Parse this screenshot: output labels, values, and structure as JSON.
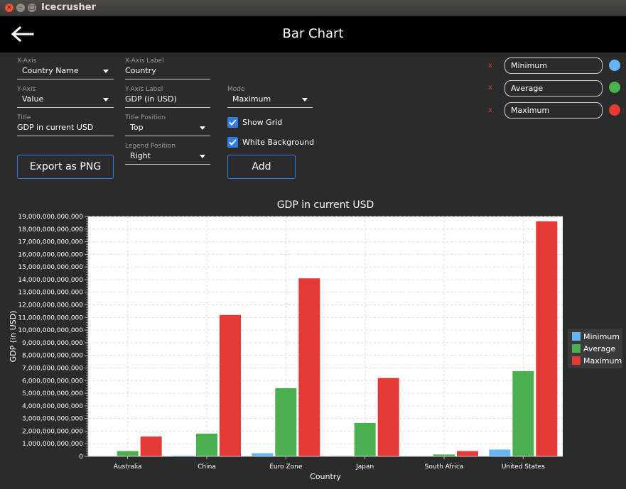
{
  "window": {
    "title": "Icecrusher"
  },
  "appbar": {
    "title": "Bar Chart",
    "back_icon": "arrow-left-icon"
  },
  "form": {
    "x_axis": {
      "label": "X-Axis",
      "value": "Country Name"
    },
    "y_axis": {
      "label": "Y-Axis",
      "value": "Value"
    },
    "title": {
      "label": "Title",
      "value": "GDP in current USD"
    },
    "x_axis_label": {
      "label": "X-Axis Label",
      "value": "Country"
    },
    "y_axis_label": {
      "label": "Y-Axis Label",
      "value": "GDP (in USD)"
    },
    "title_position": {
      "label": "Title Position",
      "value": "Top"
    },
    "legend_position": {
      "label": "Legend Position",
      "value": "Right"
    },
    "mode": {
      "label": "Mode",
      "value": "Maximum"
    },
    "show_grid": {
      "label": "Show Grid",
      "checked": true
    },
    "white_background": {
      "label": "White Background",
      "checked": true
    },
    "export_button": "Export as PNG",
    "add_button": "Add"
  },
  "series_list": [
    {
      "remove": "x",
      "name": "Minimum",
      "color": "#64b5f6"
    },
    {
      "remove": "x",
      "name": "Average",
      "color": "#4caf50"
    },
    {
      "remove": "x",
      "name": "Maximum",
      "color": "#e53935"
    }
  ],
  "chart_data": {
    "type": "bar",
    "title": "GDP in current USD",
    "xlabel": "Country",
    "ylabel": "GDP (in USD)",
    "ylim": [
      0,
      19000000000000
    ],
    "yticks": [
      "0",
      "1,000,000,000,000",
      "2,000,000,000,000",
      "3,000,000,000,000",
      "4,000,000,000,000",
      "5,000,000,000,000",
      "6,000,000,000,000",
      "7,000,000,000,000",
      "8,000,000,000,000",
      "9,000,000,000,000",
      "10,000,000,000,000",
      "11,000,000,000,000",
      "12,000,000,000,000",
      "13,000,000,000,000",
      "14,000,000,000,000",
      "15,000,000,000,000",
      "16,000,000,000,000",
      "17,000,000,000,000",
      "18,000,000,000,000",
      "19,000,000,000,000"
    ],
    "categories": [
      "Australia",
      "China",
      "Euro Zone",
      "Japan",
      "South Africa",
      "United States"
    ],
    "series": [
      {
        "name": "Minimum",
        "color": "#64b5f6",
        "values": [
          19000000000,
          60000000000,
          250000000000,
          45000000000,
          8000000000,
          540000000000
        ]
      },
      {
        "name": "Average",
        "color": "#4caf50",
        "values": [
          420000000000,
          1800000000000,
          5400000000000,
          2650000000000,
          150000000000,
          6750000000000
        ]
      },
      {
        "name": "Maximum",
        "color": "#e53935",
        "values": [
          1570000000000,
          11200000000000,
          14100000000000,
          6200000000000,
          420000000000,
          18620000000000
        ]
      }
    ],
    "grid": true,
    "legend": "right",
    "background": "#ffffff"
  }
}
